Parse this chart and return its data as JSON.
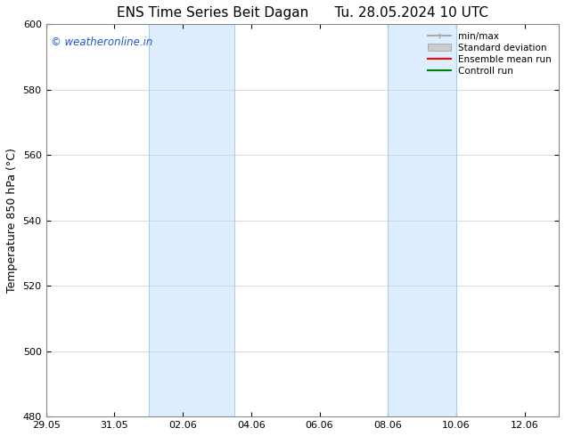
{
  "title_left": "ENS Time Series Beit Dagan",
  "title_right": "Tu. 28.05.2024 10 UTC",
  "ylabel": "Temperature 850 hPa (°C)",
  "ylim": [
    480,
    600
  ],
  "yticks": [
    480,
    500,
    520,
    540,
    560,
    580,
    600
  ],
  "x_start": "2024-05-29",
  "x_end": "2024-06-13",
  "xtick_labels": [
    "29.05",
    "31.05",
    "02.06",
    "04.06",
    "06.06",
    "08.06",
    "10.06",
    "12.06"
  ],
  "xtick_dates": [
    "2024-05-29",
    "2024-05-31",
    "2024-06-02",
    "2024-06-04",
    "2024-06-06",
    "2024-06-08",
    "2024-06-10",
    "2024-06-12"
  ],
  "shaded_bands": [
    {
      "x_start": "2024-06-01",
      "x_end": "2024-06-03 12:00"
    },
    {
      "x_start": "2024-06-08",
      "x_end": "2024-06-10"
    }
  ],
  "shaded_color": "#ddeeff",
  "shaded_edge_color": "#aaccee",
  "legend_entries": [
    {
      "label": "min/max",
      "color": "#aaaaaa",
      "lw": 1.5,
      "style": "minmax"
    },
    {
      "label": "Standard deviation",
      "color": "#cccccc",
      "lw": 6,
      "style": "band"
    },
    {
      "label": "Ensemble mean run",
      "color": "red",
      "lw": 1.5,
      "style": "line"
    },
    {
      "label": "Controll run",
      "color": "green",
      "lw": 1.5,
      "style": "line"
    }
  ],
  "watermark_text": "© weatheronline.in",
  "watermark_color": "#2255cc",
  "background_color": "#ffffff",
  "grid_color": "#cccccc",
  "title_fontsize": 11,
  "axis_label_fontsize": 9,
  "tick_fontsize": 8
}
